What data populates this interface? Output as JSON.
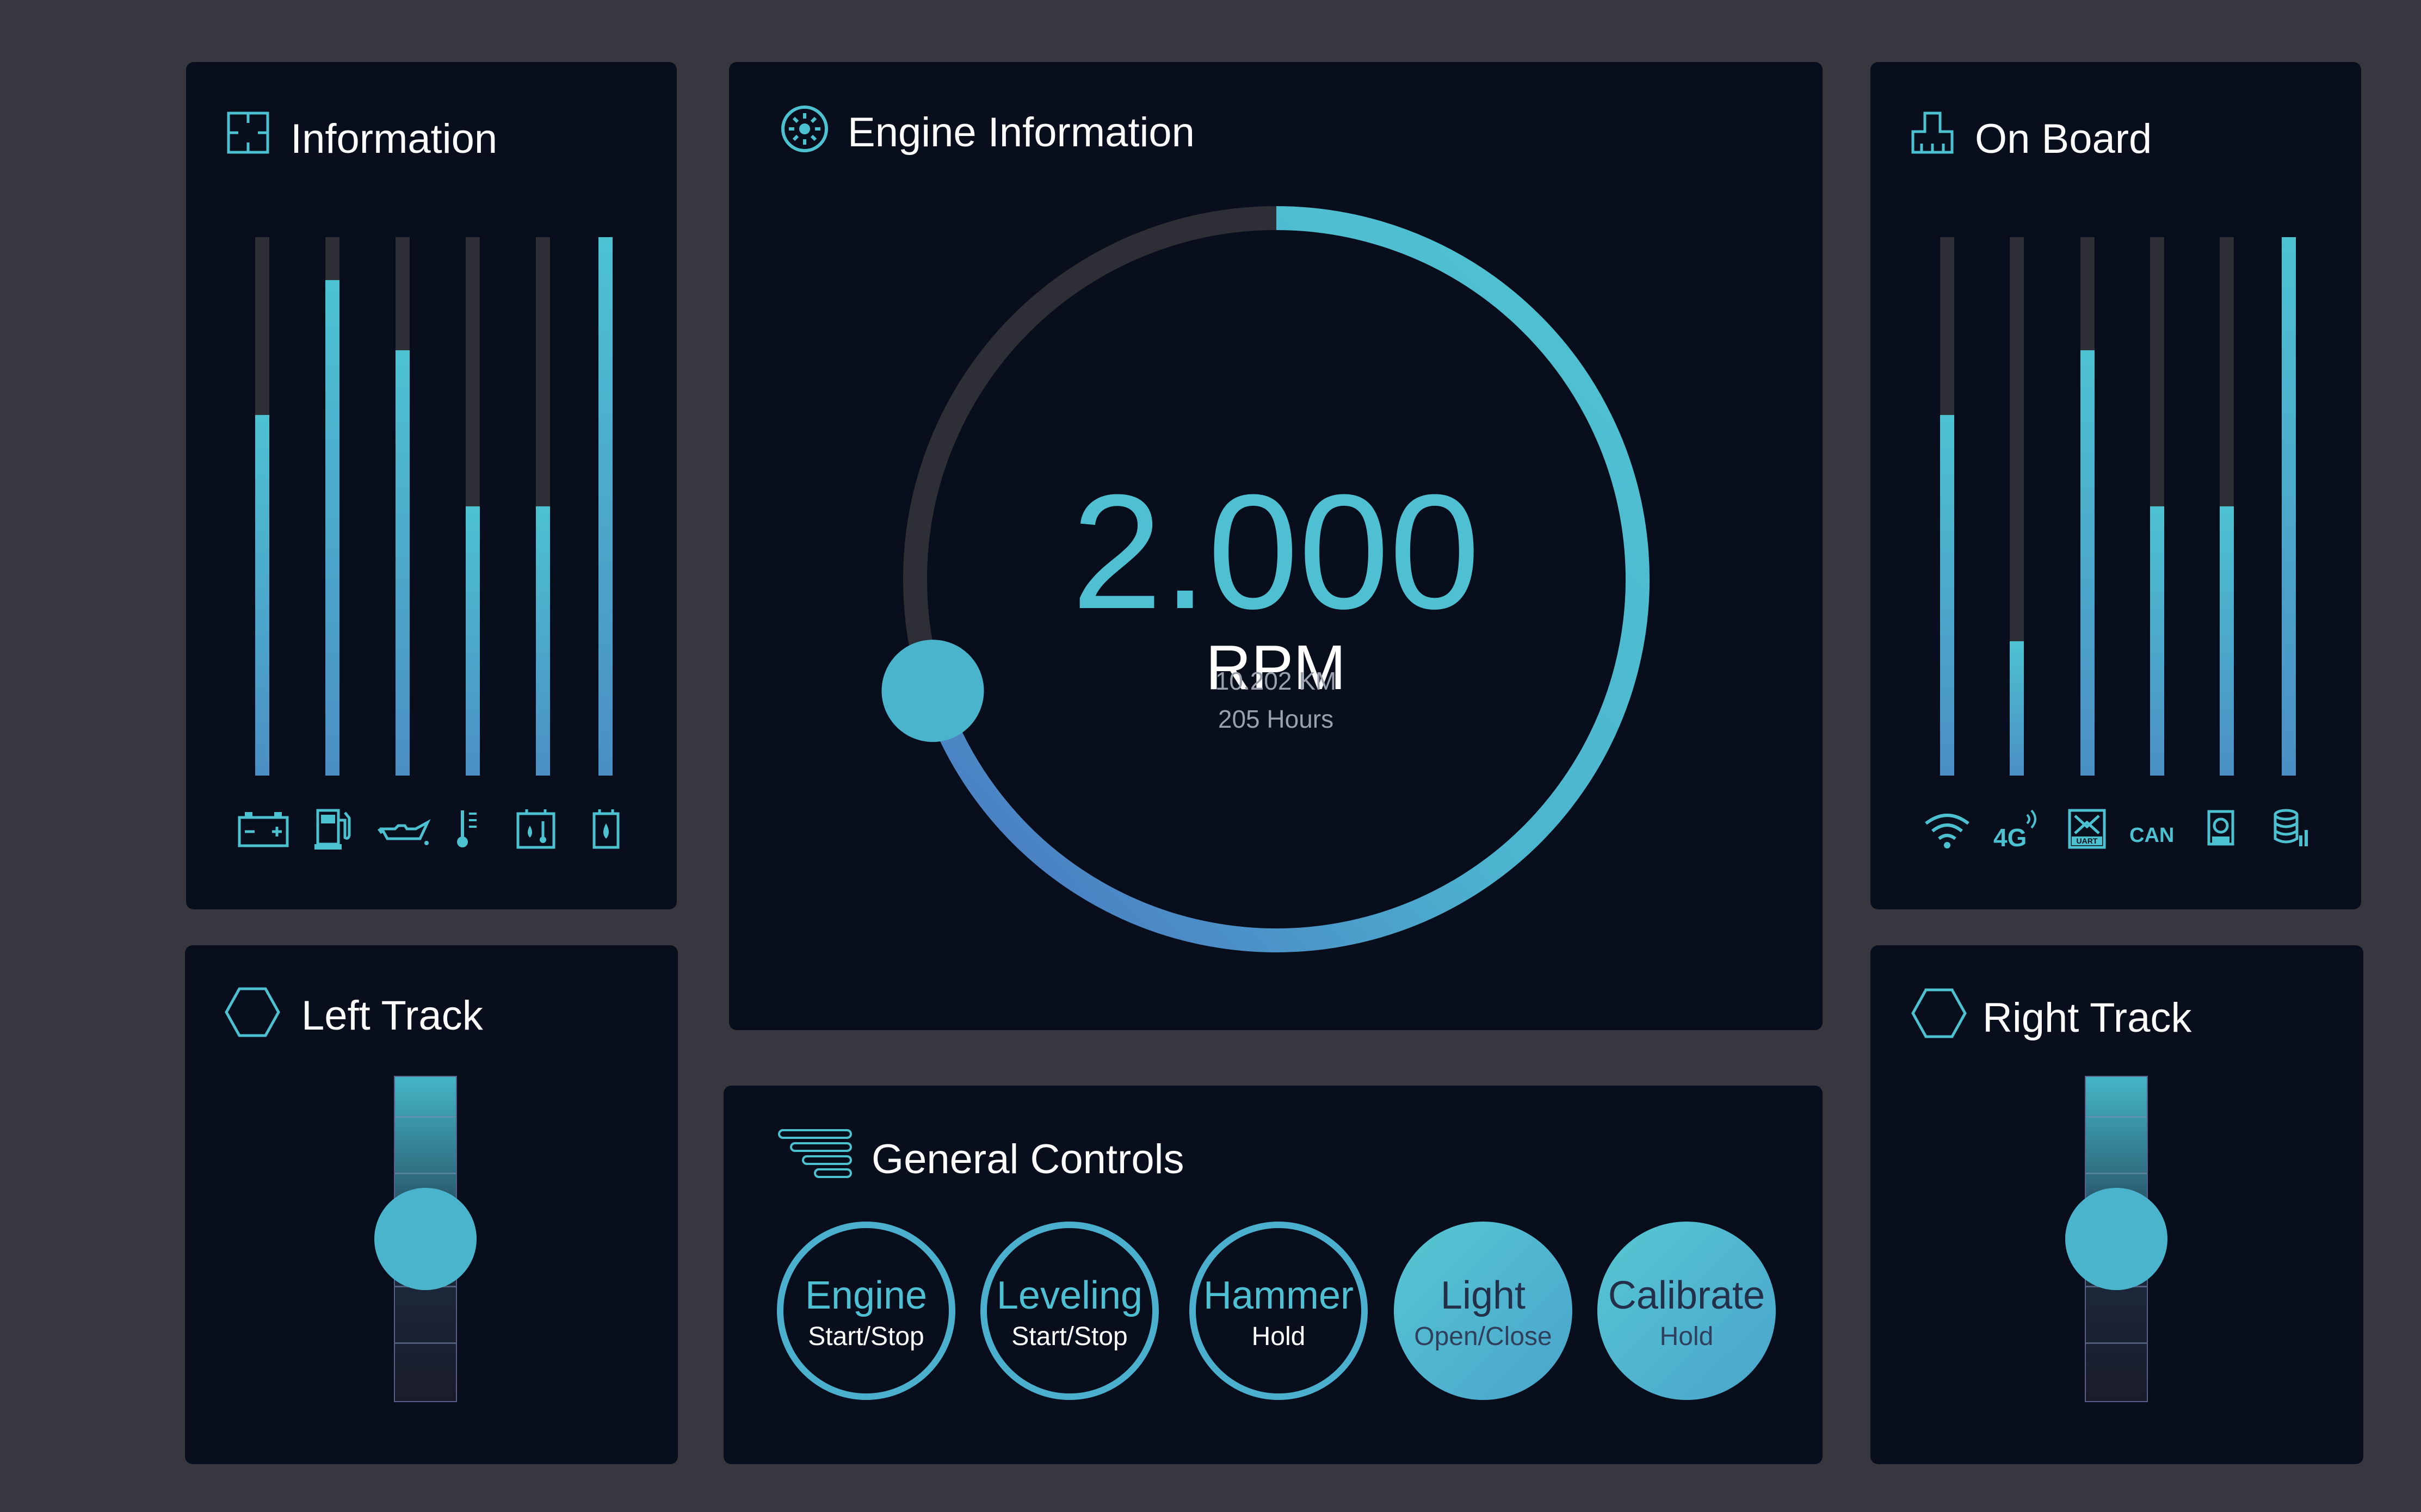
{
  "colors": {
    "background": "#38363f",
    "panel": "#080e1c",
    "accent": "#4cc2d1",
    "accent_blue": "#4b7fc4",
    "track": "#2e2e36"
  },
  "information": {
    "title": "Information",
    "icon": "frame-icon",
    "bars": [
      {
        "level": 0.67,
        "icon": "battery-icon"
      },
      {
        "level": 0.92,
        "icon": "fuel-pump-icon"
      },
      {
        "level": 0.79,
        "icon": "oil-can-icon"
      },
      {
        "level": 0.5,
        "icon": "thermometer-icon"
      },
      {
        "level": 0.5,
        "icon": "coolant-temperature-icon"
      },
      {
        "level": 1.0,
        "icon": "coolant-level-icon"
      }
    ]
  },
  "engine": {
    "title": "Engine Information",
    "icon": "engine-gear-icon",
    "rpm": "2.000",
    "unit": "RPM",
    "distance": "10.202 KM",
    "hours": "205 Hours",
    "gauge_level": 0.7
  },
  "onboard": {
    "title": "On Board",
    "icon": "onboard-module-icon",
    "bars": [
      {
        "level": 0.67,
        "icon": "wifi-icon"
      },
      {
        "level": 0.25,
        "icon": "4g-icon"
      },
      {
        "level": 0.79,
        "icon": "uart-icon"
      },
      {
        "level": 0.5,
        "icon": "can-icon"
      },
      {
        "level": 0.5,
        "icon": "storage-card-icon"
      },
      {
        "level": 1.0,
        "icon": "database-icon"
      }
    ]
  },
  "left_track": {
    "title": "Left Track",
    "icon": "hexagon-icon",
    "level": 0.5
  },
  "right_track": {
    "title": "Right Track",
    "icon": "hexagon-icon",
    "level": 0.5
  },
  "controls": {
    "title": "General Controls",
    "icon": "control-lines-icon",
    "buttons": [
      {
        "label": "Engine",
        "sub": "Start/Stop",
        "style": "outline"
      },
      {
        "label": "Leveling",
        "sub": "Start/Stop",
        "style": "outline"
      },
      {
        "label": "Hammer",
        "sub": "Hold",
        "style": "outline"
      },
      {
        "label": "Light",
        "sub": "Open/Close",
        "style": "filled"
      },
      {
        "label": "Calibrate",
        "sub": "Hold",
        "style": "filled"
      }
    ]
  }
}
